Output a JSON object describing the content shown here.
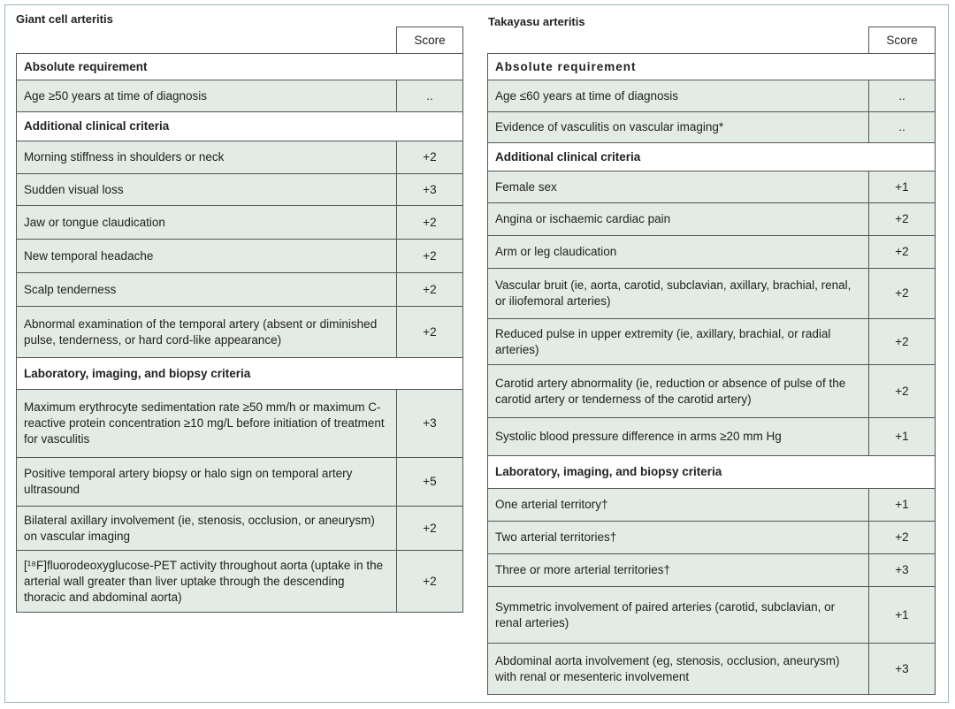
{
  "tables": [
    {
      "title": "Giant cell arteritis",
      "score_header": "Score",
      "sections": [
        {
          "heading": "Absolute requirement",
          "rows": [
            {
              "criterion": "Age ≥50 years at time of diagnosis",
              "score": ".."
            }
          ]
        },
        {
          "heading": "Additional clinical criteria",
          "rows": [
            {
              "criterion": "Morning stiffness in shoulders or neck",
              "score": "+2"
            },
            {
              "criterion": "Sudden visual loss",
              "score": "+3"
            },
            {
              "criterion": "Jaw or tongue claudication",
              "score": "+2"
            },
            {
              "criterion": "New temporal headache",
              "score": "+2"
            },
            {
              "criterion": "Scalp tenderness",
              "score": "+2"
            },
            {
              "criterion": "Abnormal examination of the temporal artery (absent or diminished pulse, tenderness, or hard cord-like appearance)",
              "score": "+2"
            }
          ]
        },
        {
          "heading": "Laboratory, imaging, and biopsy criteria",
          "rows": [
            {
              "criterion": "Maximum erythrocyte sedimentation rate ≥50 mm/h or maximum C-reactive protein concentration ≥10 mg/L before initiation of treatment for vasculitis",
              "score": "+3"
            },
            {
              "criterion": "Positive temporal artery biopsy or halo sign on temporal artery ultrasound",
              "score": "+5"
            },
            {
              "criterion": "Bilateral axillary involvement (ie, stenosis, occlusion, or aneurysm) on vascular imaging",
              "score": "+2"
            },
            {
              "criterion": "[¹⁸F]fluorodeoxyglucose-PET activity throughout aorta (uptake in the arterial wall greater than liver uptake through the descending thoracic and abdominal aorta)",
              "score": "+2"
            }
          ]
        }
      ]
    },
    {
      "title": "Takayasu arteritis",
      "score_header": "Score",
      "sections": [
        {
          "heading": "Absolute requirement",
          "rows": [
            {
              "criterion": "Age ≤60 years at time of diagnosis",
              "score": ".."
            },
            {
              "criterion": "Evidence of vasculitis on vascular imaging*",
              "score": ".."
            }
          ]
        },
        {
          "heading": "Additional clinical criteria",
          "rows": [
            {
              "criterion": "Female sex",
              "score": "+1"
            },
            {
              "criterion": "Angina or ischaemic cardiac pain",
              "score": "+2"
            },
            {
              "criterion": "Arm or leg claudication",
              "score": "+2"
            },
            {
              "criterion": "Vascular bruit (ie, aorta, carotid, subclavian, axillary, brachial, renal, or iliofemoral arteries)",
              "score": "+2"
            },
            {
              "criterion": "Reduced pulse in upper extremity (ie, axillary, brachial, or radial arteries)",
              "score": "+2"
            },
            {
              "criterion": "Carotid artery abnormality (ie, reduction or absence of pulse of the carotid artery or tenderness of the carotid artery)",
              "score": "+2"
            },
            {
              "criterion": "Systolic blood pressure difference in arms ≥20 mm Hg",
              "score": "+1"
            }
          ]
        },
        {
          "heading": "Laboratory, imaging, and biopsy criteria",
          "rows": [
            {
              "criterion": "One arterial territory†",
              "score": "+1"
            },
            {
              "criterion": "Two arterial territories†",
              "score": "+2"
            },
            {
              "criterion": "Three or more arterial territories†",
              "score": "+3"
            },
            {
              "criterion": "Symmetric involvement of paired arteries (carotid, subclavian, or renal arteries)",
              "score": "+1"
            },
            {
              "criterion": "Abdominal aorta involvement (eg, stenosis, occlusion, aneurysm) with renal or mesenteric involvement",
              "score": "+3"
            }
          ]
        }
      ]
    }
  ]
}
